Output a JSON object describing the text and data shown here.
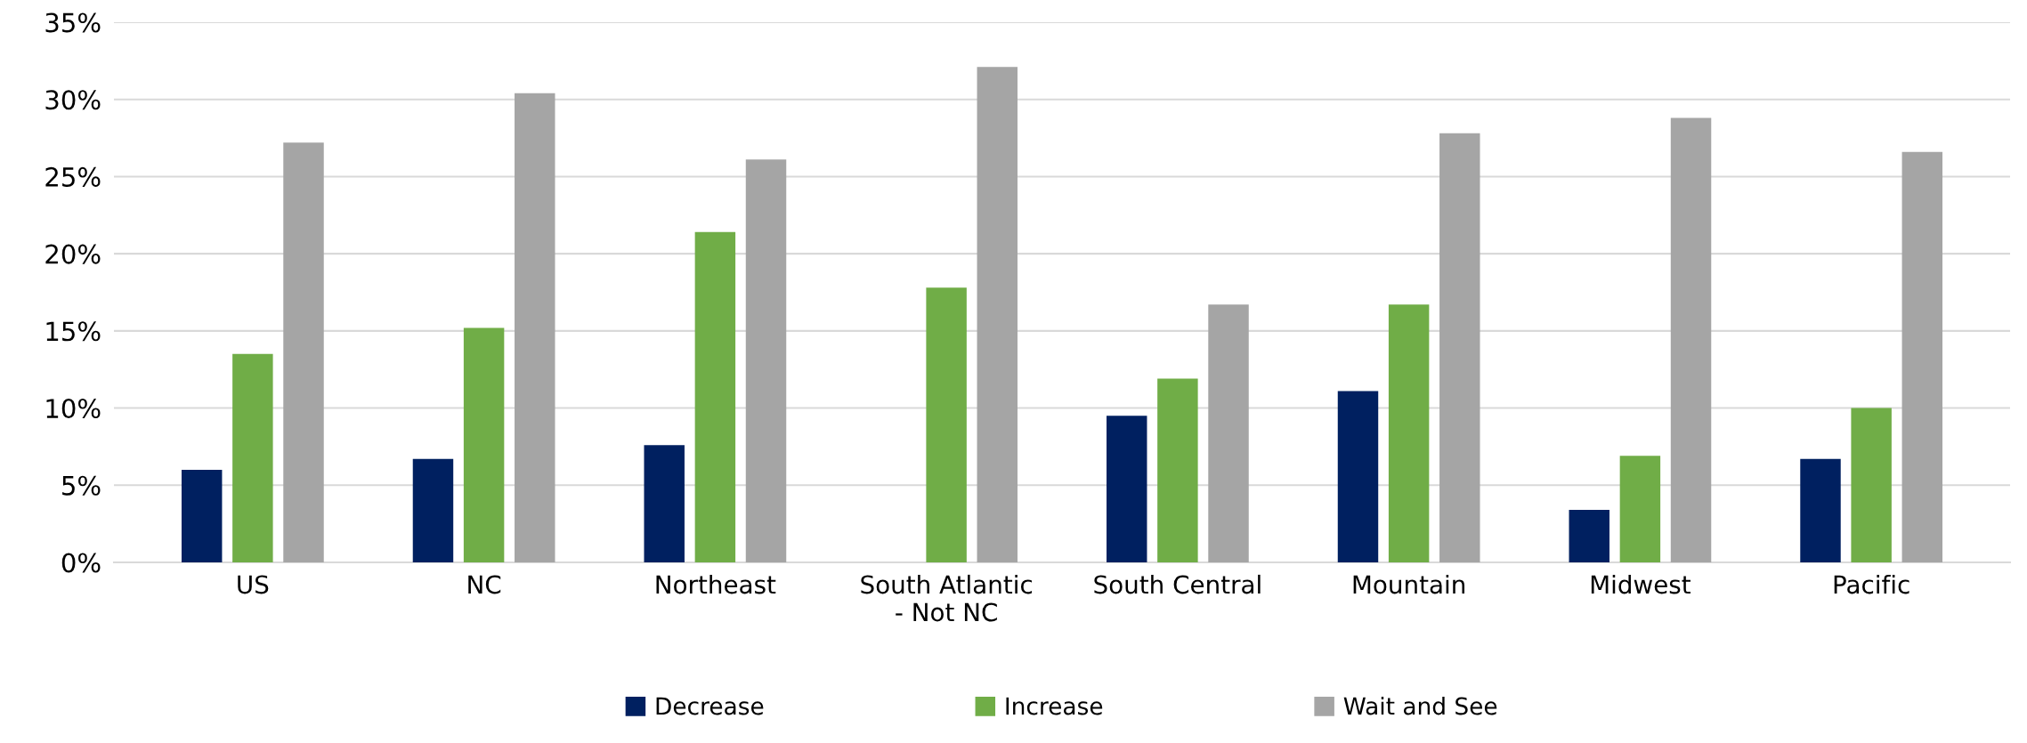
{
  "chart_data": {
    "type": "bar",
    "categories": [
      "US",
      "NC",
      "Northeast",
      "South Atlantic\n- Not NC",
      "South Central",
      "Mountain",
      "Midwest",
      "Pacific"
    ],
    "series": [
      {
        "name": "Decrease",
        "color": "#002060",
        "values": [
          6.0,
          6.7,
          7.6,
          0,
          9.5,
          11.1,
          3.4,
          6.7
        ]
      },
      {
        "name": "Increase",
        "color": "#70ad47",
        "values": [
          13.5,
          15.2,
          21.4,
          17.8,
          11.9,
          16.7,
          6.9,
          10.0
        ]
      },
      {
        "name": "Wait and See",
        "color": "#a5a5a5",
        "values": [
          27.2,
          30.4,
          26.1,
          32.1,
          16.7,
          27.8,
          28.8,
          26.6
        ]
      }
    ],
    "ylim": [
      0,
      35
    ],
    "yticks": [
      {
        "value": 0,
        "label": "0%"
      },
      {
        "value": 5,
        "label": "5%"
      },
      {
        "value": 10,
        "label": "10%"
      },
      {
        "value": 15,
        "label": "15%"
      },
      {
        "value": 20,
        "label": "20%"
      },
      {
        "value": 25,
        "label": "25%"
      },
      {
        "value": 30,
        "label": "30%"
      },
      {
        "value": 35,
        "label": "35%"
      }
    ],
    "grid": "y",
    "legend": "bottom"
  }
}
